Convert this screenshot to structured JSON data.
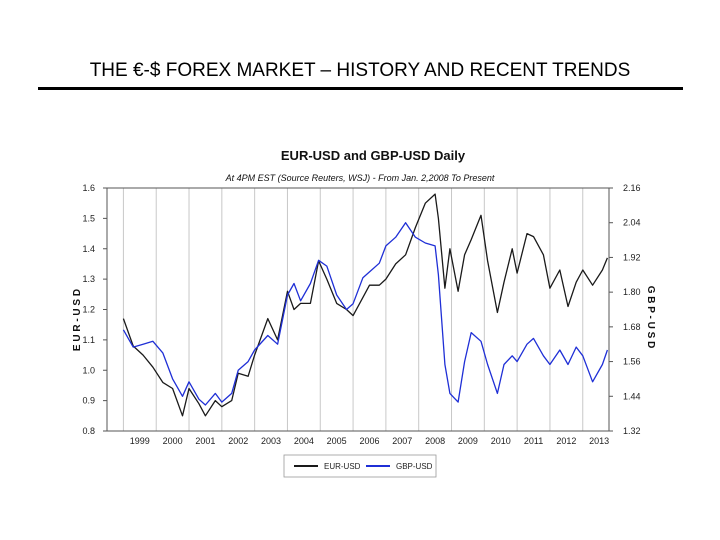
{
  "slide": {
    "title": "THE €-$ FOREX MARKET – HISTORY AND RECENT TRENDS"
  },
  "chart_data": {
    "type": "line",
    "title": "EUR-USD and GBP-USD Daily",
    "subtitle": "At 4PM EST (Source Reuters, WSJ) - From Jan. 2,2008 To Present",
    "ylabel_left": "E U R - U S D",
    "ylabel_right": "G B P - U S D",
    "ylim_left": [
      0.8,
      1.6
    ],
    "ylim_right": [
      1.32,
      2.16
    ],
    "yticks_left": [
      "1.6",
      "1.5",
      "1.4",
      "1.3",
      "1.2",
      "1.1",
      "1.0",
      "0.9",
      "0.8"
    ],
    "yticks_right": [
      "2.16",
      "2.04",
      "1.92",
      "1.80",
      "1.68",
      "1.56",
      "1.44",
      "1.32"
    ],
    "xlim": [
      1998.5,
      2013.8
    ],
    "xticks": [
      "1999",
      "2000",
      "2001",
      "2002",
      "2003",
      "2004",
      "2005",
      "2006",
      "2007",
      "2008",
      "2009",
      "2010",
      "2011",
      "2012",
      "2013"
    ],
    "grid": "vertical",
    "legend_position": "bottom",
    "series": [
      {
        "name": "EUR-USD",
        "color": "#1a1a1a",
        "axis": "left",
        "points": [
          [
            1999.0,
            1.17
          ],
          [
            1999.3,
            1.08
          ],
          [
            1999.6,
            1.05
          ],
          [
            1999.9,
            1.01
          ],
          [
            2000.2,
            0.96
          ],
          [
            2000.5,
            0.94
          ],
          [
            2000.8,
            0.85
          ],
          [
            2001.0,
            0.94
          ],
          [
            2001.3,
            0.89
          ],
          [
            2001.5,
            0.85
          ],
          [
            2001.8,
            0.9
          ],
          [
            2002.0,
            0.88
          ],
          [
            2002.3,
            0.9
          ],
          [
            2002.5,
            0.99
          ],
          [
            2002.8,
            0.98
          ],
          [
            2003.0,
            1.05
          ],
          [
            2003.4,
            1.17
          ],
          [
            2003.7,
            1.1
          ],
          [
            2004.0,
            1.26
          ],
          [
            2004.2,
            1.2
          ],
          [
            2004.4,
            1.22
          ],
          [
            2004.7,
            1.22
          ],
          [
            2004.95,
            1.36
          ],
          [
            2005.2,
            1.3
          ],
          [
            2005.5,
            1.22
          ],
          [
            2005.8,
            1.2
          ],
          [
            2006.0,
            1.18
          ],
          [
            2006.3,
            1.24
          ],
          [
            2006.5,
            1.28
          ],
          [
            2006.8,
            1.28
          ],
          [
            2007.0,
            1.3
          ],
          [
            2007.3,
            1.35
          ],
          [
            2007.6,
            1.38
          ],
          [
            2007.9,
            1.47
          ],
          [
            2008.2,
            1.55
          ],
          [
            2008.5,
            1.58
          ],
          [
            2008.6,
            1.5
          ],
          [
            2008.8,
            1.27
          ],
          [
            2008.95,
            1.4
          ],
          [
            2009.2,
            1.26
          ],
          [
            2009.4,
            1.38
          ],
          [
            2009.6,
            1.43
          ],
          [
            2009.9,
            1.51
          ],
          [
            2010.1,
            1.36
          ],
          [
            2010.4,
            1.19
          ],
          [
            2010.6,
            1.29
          ],
          [
            2010.85,
            1.4
          ],
          [
            2011.0,
            1.32
          ],
          [
            2011.3,
            1.45
          ],
          [
            2011.5,
            1.44
          ],
          [
            2011.8,
            1.38
          ],
          [
            2012.0,
            1.27
          ],
          [
            2012.3,
            1.33
          ],
          [
            2012.55,
            1.21
          ],
          [
            2012.8,
            1.29
          ],
          [
            2013.0,
            1.33
          ],
          [
            2013.3,
            1.28
          ],
          [
            2013.6,
            1.33
          ],
          [
            2013.75,
            1.37
          ]
        ]
      },
      {
        "name": "GBP-USD",
        "color": "#1f2fd6",
        "axis": "right",
        "points": [
          [
            1999.0,
            1.67
          ],
          [
            1999.3,
            1.61
          ],
          [
            1999.6,
            1.62
          ],
          [
            1999.9,
            1.63
          ],
          [
            2000.2,
            1.59
          ],
          [
            2000.5,
            1.5
          ],
          [
            2000.8,
            1.44
          ],
          [
            2001.0,
            1.49
          ],
          [
            2001.3,
            1.43
          ],
          [
            2001.5,
            1.41
          ],
          [
            2001.8,
            1.45
          ],
          [
            2002.0,
            1.42
          ],
          [
            2002.3,
            1.45
          ],
          [
            2002.5,
            1.53
          ],
          [
            2002.8,
            1.56
          ],
          [
            2003.0,
            1.6
          ],
          [
            2003.4,
            1.65
          ],
          [
            2003.7,
            1.62
          ],
          [
            2004.0,
            1.79
          ],
          [
            2004.2,
            1.83
          ],
          [
            2004.4,
            1.77
          ],
          [
            2004.7,
            1.83
          ],
          [
            2004.95,
            1.91
          ],
          [
            2005.2,
            1.89
          ],
          [
            2005.5,
            1.79
          ],
          [
            2005.8,
            1.74
          ],
          [
            2006.0,
            1.76
          ],
          [
            2006.3,
            1.85
          ],
          [
            2006.5,
            1.87
          ],
          [
            2006.8,
            1.9
          ],
          [
            2007.0,
            1.96
          ],
          [
            2007.3,
            1.99
          ],
          [
            2007.6,
            2.04
          ],
          [
            2007.9,
            1.99
          ],
          [
            2008.2,
            1.97
          ],
          [
            2008.5,
            1.96
          ],
          [
            2008.6,
            1.86
          ],
          [
            2008.8,
            1.55
          ],
          [
            2008.95,
            1.45
          ],
          [
            2009.2,
            1.42
          ],
          [
            2009.4,
            1.56
          ],
          [
            2009.6,
            1.66
          ],
          [
            2009.9,
            1.63
          ],
          [
            2010.1,
            1.55
          ],
          [
            2010.4,
            1.45
          ],
          [
            2010.6,
            1.55
          ],
          [
            2010.85,
            1.58
          ],
          [
            2011.0,
            1.56
          ],
          [
            2011.3,
            1.62
          ],
          [
            2011.5,
            1.64
          ],
          [
            2011.8,
            1.58
          ],
          [
            2012.0,
            1.55
          ],
          [
            2012.3,
            1.6
          ],
          [
            2012.55,
            1.55
          ],
          [
            2012.8,
            1.61
          ],
          [
            2013.0,
            1.58
          ],
          [
            2013.3,
            1.49
          ],
          [
            2013.6,
            1.55
          ],
          [
            2013.75,
            1.6
          ]
        ]
      }
    ]
  }
}
